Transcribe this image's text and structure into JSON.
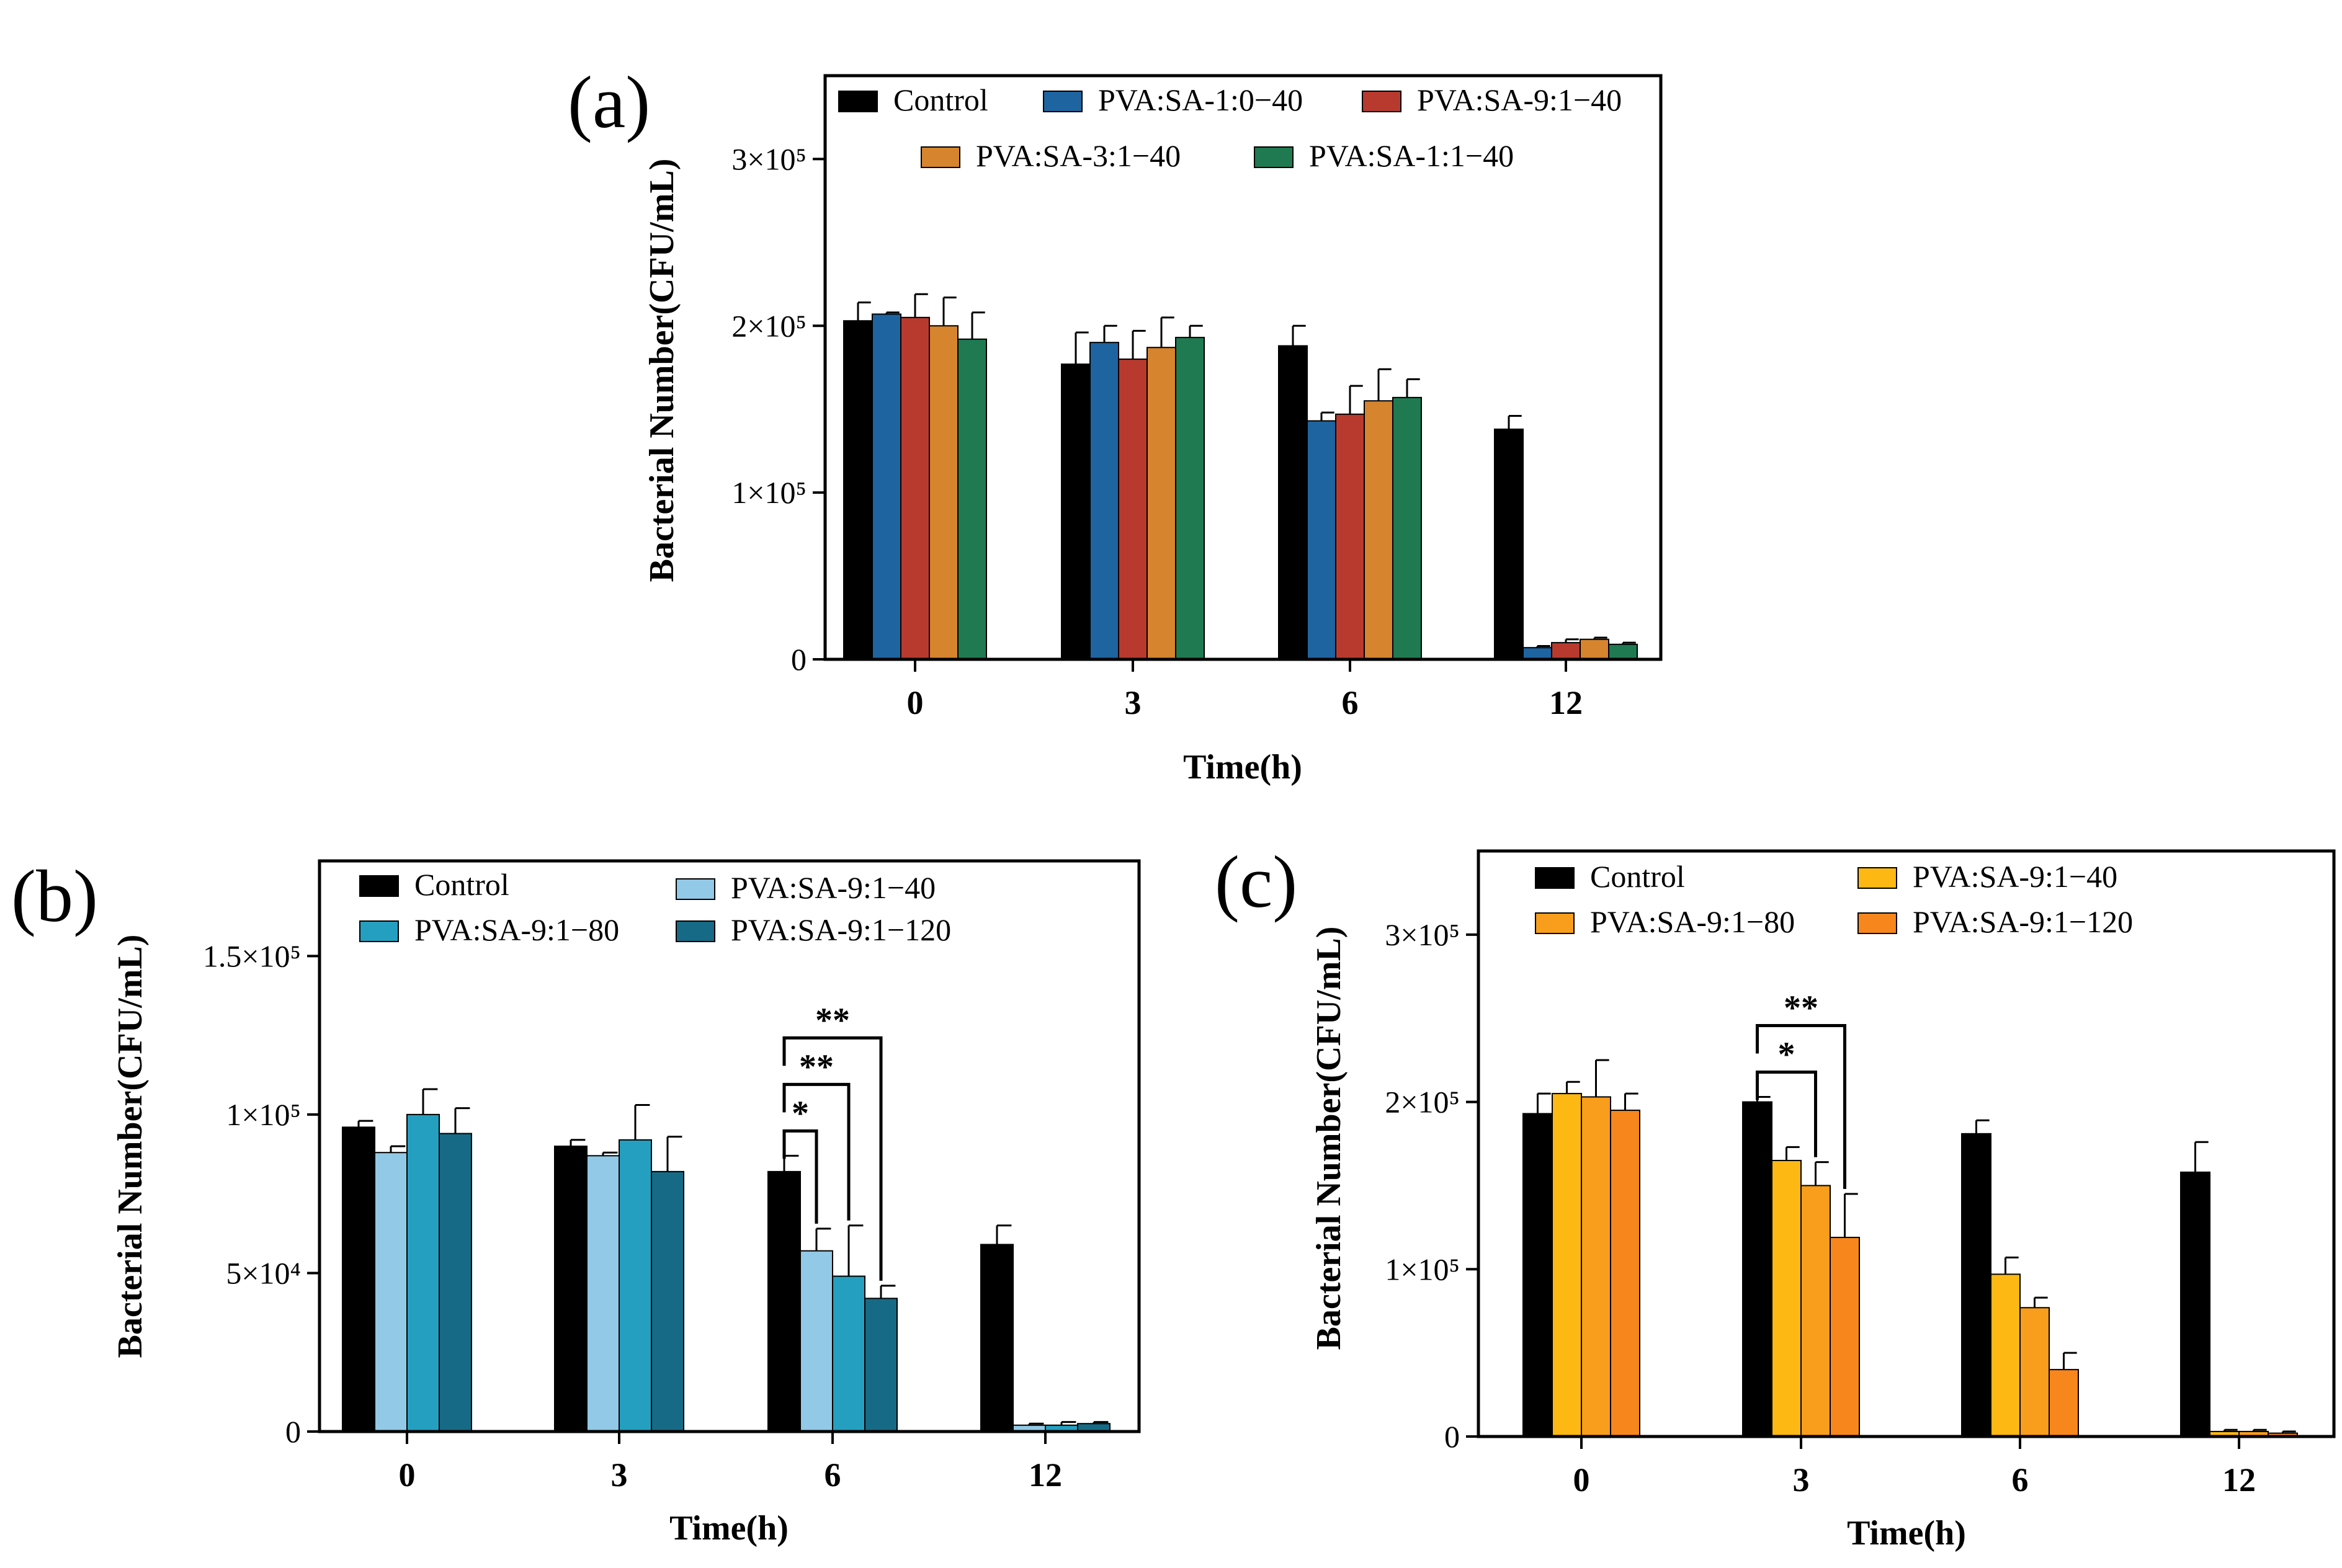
{
  "chart_data": [
    {
      "panel": "(a)",
      "type": "bar",
      "xlabel": "Time(h)",
      "ylabel": "Bacterial Number(CFU/mL)",
      "ylim": [
        0,
        350000
      ],
      "yticks": [
        {
          "value": 0,
          "label": "0"
        },
        {
          "value": 100000,
          "label": "1×10⁵"
        },
        {
          "value": 200000,
          "label": "2×10⁵"
        },
        {
          "value": 300000,
          "label": "3×10⁵"
        }
      ],
      "categories": [
        "0",
        "3",
        "6",
        "12"
      ],
      "series": [
        {
          "name": "Control",
          "color": "#000000",
          "values": [
            203000,
            177000,
            188000,
            138000
          ],
          "errors": [
            11000,
            19000,
            12000,
            8000
          ]
        },
        {
          "name": "PVA:SA-1:0−40",
          "color": "#1e64a0",
          "values": [
            207000,
            190000,
            143000,
            7000
          ],
          "errors": [
            1000,
            10000,
            5000,
            1000
          ]
        },
        {
          "name": "PVA:SA-9:1−40",
          "color": "#b83a2e",
          "values": [
            205000,
            180000,
            147000,
            10000
          ],
          "errors": [
            14000,
            17000,
            17000,
            2000
          ]
        },
        {
          "name": "PVA:SA-3:1−40",
          "color": "#d6842e",
          "values": [
            200000,
            187000,
            155000,
            12000
          ],
          "errors": [
            17000,
            18000,
            19000,
            1000
          ]
        },
        {
          "name": "PVA:SA-1:1−40",
          "color": "#1f7a52",
          "values": [
            192000,
            193000,
            157000,
            9000
          ],
          "errors": [
            16000,
            7000,
            11000,
            1000
          ]
        }
      ],
      "legend": [
        [
          "Control",
          "PVA:SA-1:0−40",
          "PVA:SA-9:1−40"
        ],
        [
          "PVA:SA-3:1−40",
          "PVA:SA-1:1−40"
        ]
      ],
      "significance": []
    },
    {
      "panel": "(b)",
      "type": "bar",
      "xlabel": "Time(h)",
      "ylabel": "Bacterial Number(CFU/mL)",
      "ylim": [
        0,
        180000
      ],
      "yticks": [
        {
          "value": 0,
          "label": "0"
        },
        {
          "value": 50000,
          "label": "5×10⁴"
        },
        {
          "value": 100000,
          "label": "1×10⁵"
        },
        {
          "value": 150000,
          "label": "1.5×10⁵"
        }
      ],
      "categories": [
        "0",
        "3",
        "6",
        "12"
      ],
      "series": [
        {
          "name": "Control",
          "color": "#000000",
          "values": [
            96000,
            90000,
            82000,
            59000
          ],
          "errors": [
            2000,
            2000,
            5000,
            6000
          ]
        },
        {
          "name": "PVA:SA-9:1−40",
          "color": "#92c9e6",
          "values": [
            88000,
            87000,
            57000,
            2000
          ],
          "errors": [
            2000,
            1000,
            7000,
            500
          ]
        },
        {
          "name": "PVA:SA-9:1−80",
          "color": "#259fc0",
          "values": [
            100000,
            92000,
            49000,
            2000
          ],
          "errors": [
            8000,
            11000,
            16000,
            1000
          ]
        },
        {
          "name": "PVA:SA-9:1−120",
          "color": "#176a85",
          "values": [
            94000,
            82000,
            42000,
            2500
          ],
          "errors": [
            8000,
            11000,
            4000,
            500
          ]
        }
      ],
      "legend": [
        [
          "Control",
          "PVA:SA-9:1−40"
        ],
        [
          "PVA:SA-9:1−80",
          "PVA:SA-9:1−120"
        ]
      ],
      "significance": [
        {
          "category": 2,
          "from": 0,
          "to": 1,
          "label": "*",
          "level": 0
        },
        {
          "category": 2,
          "from": 0,
          "to": 2,
          "label": "**",
          "level": 1
        },
        {
          "category": 2,
          "from": 0,
          "to": 3,
          "label": "**",
          "level": 2
        }
      ]
    },
    {
      "panel": "(c)",
      "type": "bar",
      "xlabel": "Time(h)",
      "ylabel": "Bacterial Number(CFU/mL)",
      "ylim": [
        0,
        350000
      ],
      "yticks": [
        {
          "value": 0,
          "label": "0"
        },
        {
          "value": 100000,
          "label": "1×10⁵"
        },
        {
          "value": 200000,
          "label": "2×10⁵"
        },
        {
          "value": 300000,
          "label": "3×10⁵"
        }
      ],
      "categories": [
        "0",
        "3",
        "6",
        "12"
      ],
      "series": [
        {
          "name": "Control",
          "color": "#000000",
          "values": [
            193000,
            200000,
            181000,
            158000
          ],
          "errors": [
            12000,
            3000,
            8000,
            18000
          ]
        },
        {
          "name": "PVA:SA-9:1−40",
          "color": "#fdb813",
          "values": [
            205000,
            165000,
            97000,
            3000
          ],
          "errors": [
            7000,
            8000,
            10000,
            1000
          ]
        },
        {
          "name": "PVA:SA-9:1−80",
          "color": "#f99d1c",
          "values": [
            203000,
            150000,
            77000,
            3000
          ],
          "errors": [
            22000,
            14000,
            6000,
            1000
          ]
        },
        {
          "name": "PVA:SA-9:1−120",
          "color": "#f7861d",
          "values": [
            195000,
            119000,
            40000,
            2000
          ],
          "errors": [
            10000,
            26000,
            10000,
            1000
          ]
        }
      ],
      "legend": [
        [
          "Control",
          "PVA:SA-9:1−40"
        ],
        [
          "PVA:SA-9:1−80",
          "PVA:SA-9:1−120"
        ]
      ],
      "significance": [
        {
          "category": 1,
          "from": 0,
          "to": 2,
          "label": "*",
          "level": 0
        },
        {
          "category": 1,
          "from": 0,
          "to": 3,
          "label": "**",
          "level": 1
        }
      ]
    }
  ]
}
